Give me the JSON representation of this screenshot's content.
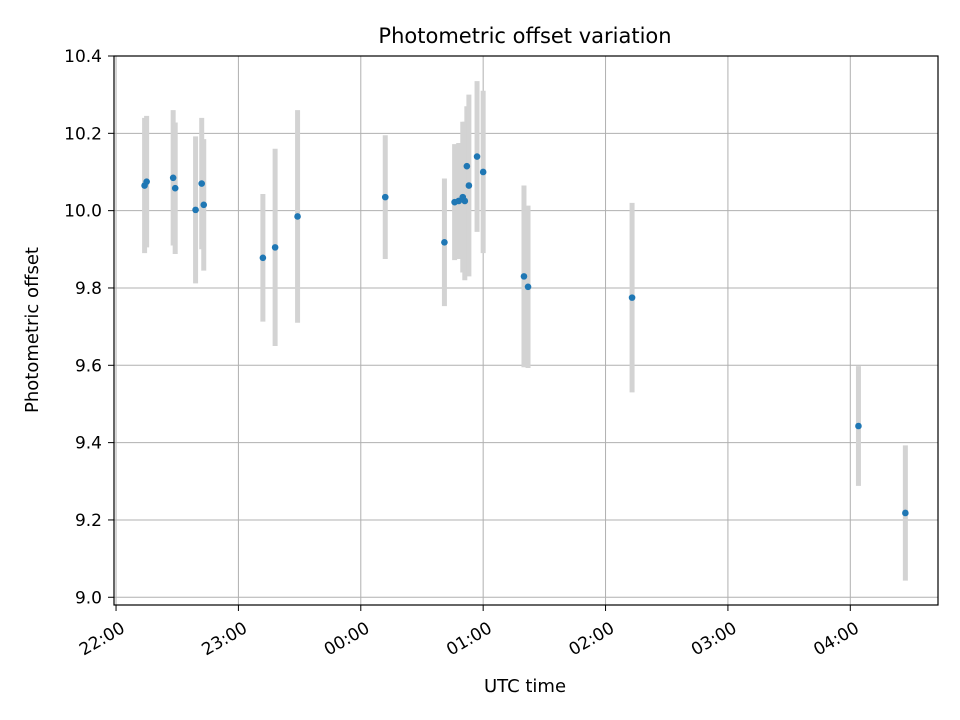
{
  "chart_data": {
    "type": "scatter",
    "title": "Photometric offset variation",
    "xlabel": "UTC time",
    "ylabel": "Photometric offset",
    "xlim": [
      "21:59",
      "04:43"
    ],
    "ylim": [
      8.98,
      10.4
    ],
    "grid": true,
    "x_ticks": [
      "22:00",
      "23:00",
      "00:00",
      "01:00",
      "02:00",
      "03:00",
      "04:00"
    ],
    "y_ticks": [
      "9.0",
      "9.2",
      "9.4",
      "9.6",
      "9.8",
      "10.0",
      "10.2",
      "10.4"
    ],
    "colors": {
      "points": "#1f77b4",
      "error_bars": "#d3d3d3",
      "grid": "#b0b0b0"
    },
    "series": [
      {
        "points": [
          {
            "x": "22:14",
            "y": 10.065,
            "err": 0.175
          },
          {
            "x": "22:15",
            "y": 10.075,
            "err": 0.17
          },
          {
            "x": "22:28",
            "y": 10.085,
            "err": 0.175
          },
          {
            "x": "22:29",
            "y": 10.058,
            "err": 0.17
          },
          {
            "x": "22:39",
            "y": 10.002,
            "err": 0.19
          },
          {
            "x": "22:42",
            "y": 10.07,
            "err": 0.17
          },
          {
            "x": "22:43",
            "y": 10.015,
            "err": 0.17
          },
          {
            "x": "23:12",
            "y": 9.878,
            "err": 0.165
          },
          {
            "x": "23:18",
            "y": 9.905,
            "err": 0.255
          },
          {
            "x": "23:29",
            "y": 9.985,
            "err": 0.275
          },
          {
            "x": "00:12",
            "y": 10.035,
            "err": 0.16
          },
          {
            "x": "00:41",
            "y": 9.918,
            "err": 0.165
          },
          {
            "x": "00:46",
            "y": 10.022,
            "err": 0.15
          },
          {
            "x": "00:48",
            "y": 10.025,
            "err": 0.15
          },
          {
            "x": "00:50",
            "y": 10.035,
            "err": 0.195
          },
          {
            "x": "00:51",
            "y": 10.025,
            "err": 0.205
          },
          {
            "x": "00:52",
            "y": 10.115,
            "err": 0.155
          },
          {
            "x": "00:53",
            "y": 10.065,
            "err": 0.235
          },
          {
            "x": "00:57",
            "y": 10.14,
            "err": 0.195
          },
          {
            "x": "01:00",
            "y": 10.1,
            "err": 0.21
          },
          {
            "x": "01:20",
            "y": 9.83,
            "err": 0.235
          },
          {
            "x": "01:22",
            "y": 9.803,
            "err": 0.21
          },
          {
            "x": "02:13",
            "y": 9.775,
            "err": 0.245
          },
          {
            "x": "04:04",
            "y": 9.443,
            "err": 0.155
          },
          {
            "x": "04:27",
            "y": 9.218,
            "err": 0.175
          }
        ]
      }
    ]
  }
}
